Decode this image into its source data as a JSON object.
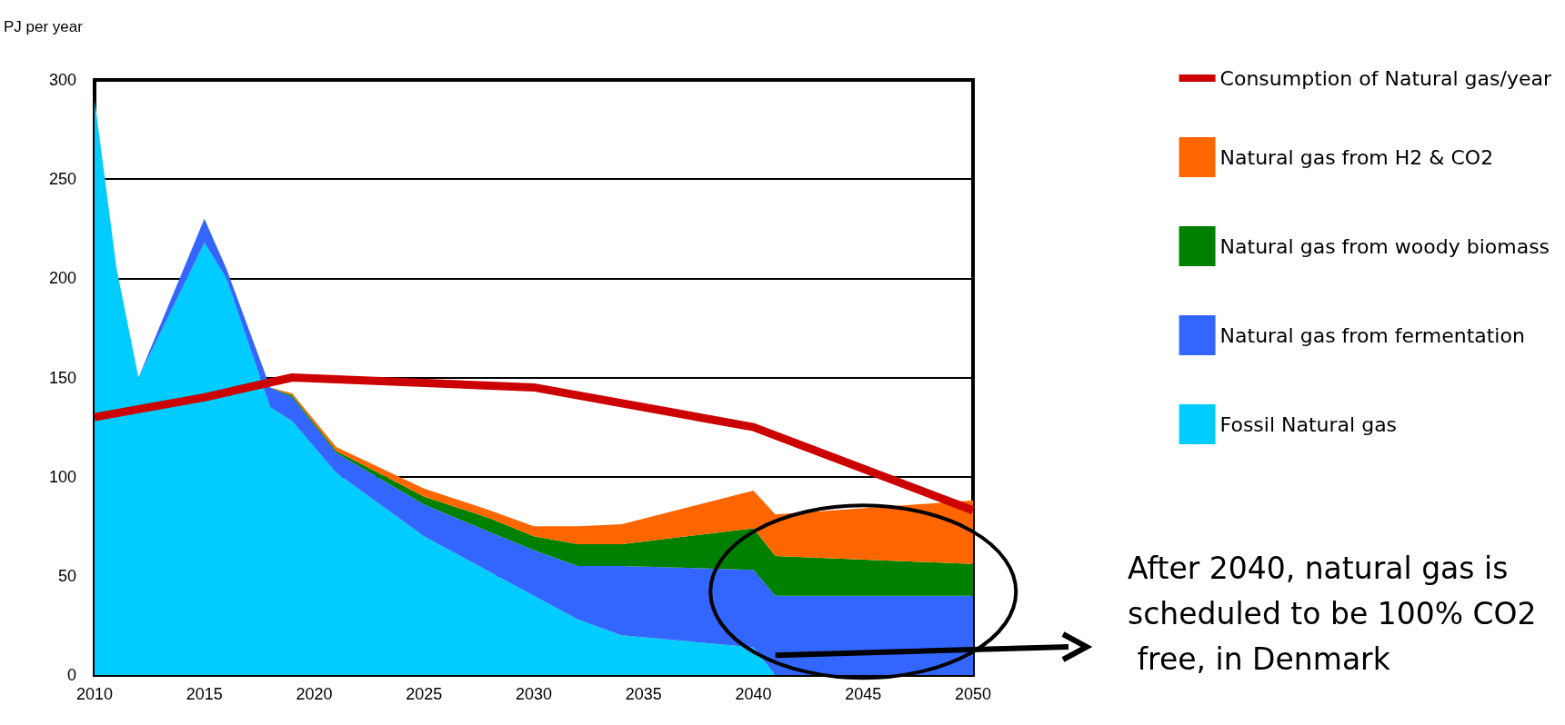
{
  "chart_data": {
    "type": "area",
    "ylabel": "PJ per year",
    "stacked": true,
    "grid": "y",
    "legend": "right",
    "marker": "none",
    "x": [
      2010,
      2011,
      2012,
      2015,
      2016,
      2018,
      2019,
      2021,
      2025,
      2028,
      2030,
      2032,
      2034,
      2040,
      2041,
      2050
    ],
    "xlim": [
      2010,
      2050
    ],
    "xticks": [
      2010,
      2015,
      2020,
      2025,
      2030,
      2035,
      2040,
      2045,
      2050
    ],
    "ylim": [
      0,
      300
    ],
    "yticks": [
      0,
      50,
      100,
      150,
      200,
      250,
      300
    ],
    "series": [
      {
        "name": "Fossil Natural gas",
        "color": "#00ccff",
        "values": [
          290,
          205,
          150,
          218,
          200,
          135,
          128,
          102,
          70,
          52,
          40,
          28,
          20,
          14,
          0,
          0
        ]
      },
      {
        "name": "Natural gas from fermentation",
        "color": "#3366ff",
        "values": [
          null,
          null,
          0,
          12,
          5,
          10,
          12,
          10,
          16,
          20,
          23,
          27,
          35,
          39,
          40,
          40
        ]
      },
      {
        "name": "Natural gas from woody biomass",
        "color": "#008000",
        "values": [
          null,
          null,
          null,
          null,
          null,
          0,
          1,
          1,
          4,
          7,
          7,
          11,
          11,
          21,
          20,
          16
        ]
      },
      {
        "name": "Natural gas from H2 & CO2",
        "color": "#ff6600",
        "values": [
          null,
          null,
          null,
          null,
          null,
          0,
          1,
          2,
          4,
          4,
          5,
          9,
          10,
          19,
          21,
          32
        ]
      },
      {
        "name": "Consumption of Natural gas/year",
        "type": "line",
        "color": "#cc0000",
        "x": [
          2010,
          2015,
          2019,
          2030,
          2040,
          2050
        ],
        "values": [
          130,
          140,
          150,
          145,
          125,
          83
        ]
      }
    ],
    "annotations": [
      "After 2040, natural gas is scheduled to be 100% CO2 free, in Denmark"
    ]
  }
}
